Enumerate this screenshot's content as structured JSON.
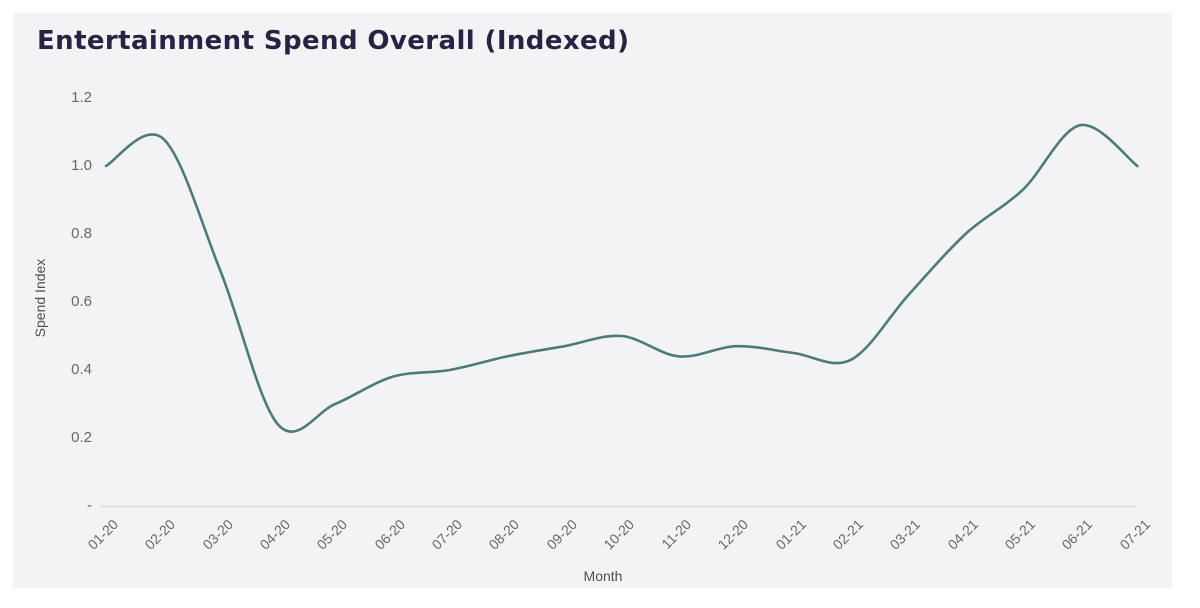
{
  "colors": {
    "page_bg": "#ffffff",
    "panel_bg": "#f3f3f5",
    "title_color": "#272343",
    "line_color": "#4e7b7a",
    "axis_line_color": "#dcdcdf",
    "tick_color": "#686868",
    "axis_title_color": "#4f4f4f"
  },
  "chart_data": {
    "type": "line",
    "title": "Entertainment Spend Overall (Indexed)",
    "xlabel": "Month",
    "ylabel": "Spend Index",
    "x": [
      "01-20",
      "02-20",
      "03-20",
      "04-20",
      "05-20",
      "06-20",
      "07-20",
      "08-20",
      "09-20",
      "10-20",
      "11-20",
      "12-20",
      "01-21",
      "02-21",
      "03-21",
      "04-21",
      "05-21",
      "06-21",
      "07-21"
    ],
    "values": [
      1.0,
      1.08,
      0.69,
      0.24,
      0.3,
      0.38,
      0.4,
      0.44,
      0.47,
      0.5,
      0.44,
      0.47,
      0.45,
      0.43,
      0.62,
      0.8,
      0.93,
      1.12,
      1.0
    ],
    "ylim": [
      0,
      1.2
    ],
    "yticks": [
      {
        "label": "1.2",
        "value": 1.2
      },
      {
        "label": "1.0",
        "value": 1.0
      },
      {
        "label": "0.8",
        "value": 0.8
      },
      {
        "label": "0.6",
        "value": 0.6
      },
      {
        "label": "0.4",
        "value": 0.4
      },
      {
        "label": "0.2",
        "value": 0.2
      },
      {
        "label": "-",
        "value": 0.0
      }
    ],
    "grid": false,
    "legend": false,
    "line_color": "#4e7b7a"
  }
}
